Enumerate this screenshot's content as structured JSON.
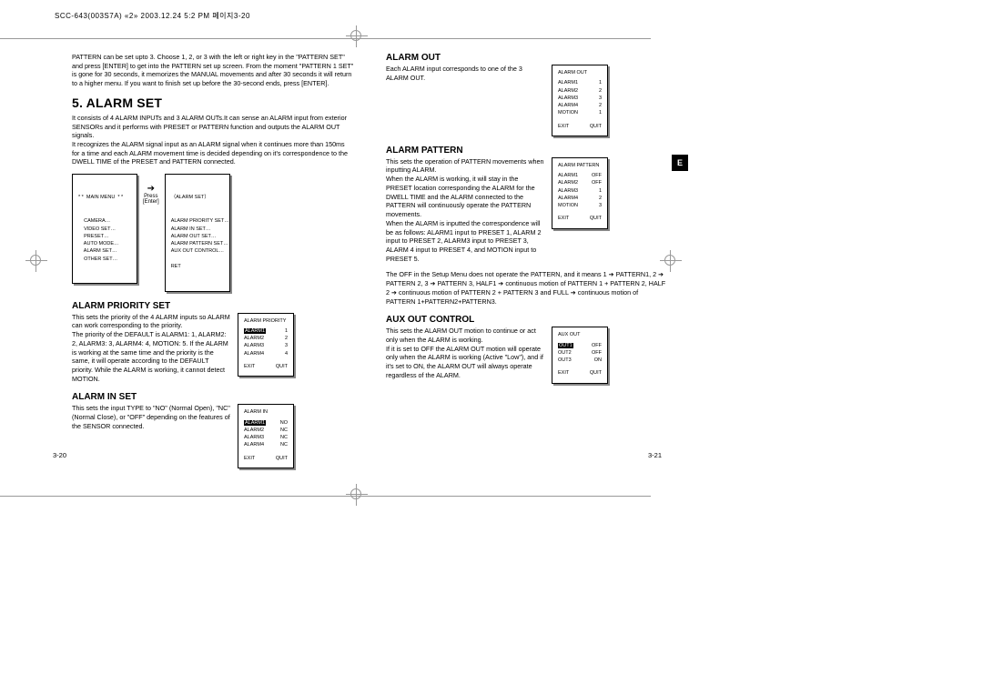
{
  "header": "SCC-643(003S7A) «2»  2003.12.24 5:2 PM 페이지3-20",
  "lang_tab": "E",
  "page_left_num": "3-20",
  "page_right_num": "3-21",
  "left": {
    "intro": "PATTERN can be set upto 3.  Choose 1, 2, or 3 with the left or right key in the \"PATTERN SET\" and press [ENTER] to get into the PATTERN set up screen. From the moment \"PATTERN 1 SET\" is gone for 30 seconds, it memorizes the MANUAL movements and after 30 seconds it will return to a higher menu. If you want to finish set up before the 30-second ends, press [ENTER].",
    "h1": "5. ALARM SET",
    "p1": "It consists of 4 ALARM INPUTs and 3 ALARM OUTs.It can sense an ALARM input from exterior SENSORs and it performs with PRESET or PATTERN function and outputs the ALARM OUT signals.\nIt recognizes the ALARM signal input as an ALARM signal when it continues more than 150ms for a time and each ALARM movement time is decided depending on it's correspondence to the DWELL TIME of the PRESET and PATTERN connected.",
    "main_menu": {
      "title": "* *  MAIN MENU  * *",
      "items": "    CAMERA…\n    VIDEO SET…\n    PRESET…\n    AUTO MODE…\n    ALARM SET…\n    OTHER SET…"
    },
    "press": {
      "arrow": "➔",
      "l1": "Press",
      "l2": "[Enter]"
    },
    "alarm_set_menu": {
      "title": "（ALARM SET）",
      "items": "ALARM PRIORITY SET…\nALARM IN SET…\nALARM OUT SET…\nALARM PATTERN SET…\nAUX OUT CONTROL…\n\nRET"
    },
    "h2": "ALARM PRIORITY SET",
    "p2": "This sets the priority of the 4 ALARM inputs so ALARM can work corresponding to the priority.\nThe priority of the DEFAULT is ALARM1: 1, ALARM2: 2, ALARM3: 3, ALARM4: 4, MOTION: 5. If the ALARM is working at the same time and the priority is the same, it will operate according to the DEFAULT priority.  While the ALARM is working, it cannot detect MOTION.",
    "priority_menu": {
      "title": "ALARM PRIORITY",
      "rows": [
        [
          "ALARM1",
          "1"
        ],
        [
          "ALARM2",
          "2"
        ],
        [
          "ALARM3",
          "3"
        ],
        [
          "ALARM4",
          "4"
        ]
      ],
      "footer": [
        "EXIT",
        "QUIT"
      ]
    },
    "h3": "ALARM IN SET",
    "p3": "This sets the input TYPE to \"NO\" (Normal Open), \"NC\" (Normal Close), or \"OFF\" depending on the features of the SENSOR connected.",
    "in_menu": {
      "title": "ALARM IN",
      "rows": [
        [
          "ALARM1",
          "NO"
        ],
        [
          "ALARM2",
          "NC"
        ],
        [
          "ALARM3",
          "NC"
        ],
        [
          "ALARM4",
          "NC"
        ]
      ],
      "footer": [
        "EXIT",
        "QUIT"
      ]
    }
  },
  "right": {
    "h1": "ALARM OUT",
    "p1": "Each ALARM input corresponds to one of the 3 ALARM OUT.",
    "out_menu": {
      "title": "ALARM OUT",
      "rows": [
        [
          "ALARM1",
          "1"
        ],
        [
          "ALARM2",
          "2"
        ],
        [
          "ALARM3",
          "3"
        ],
        [
          "ALARM4",
          "2"
        ],
        [
          "MOTION",
          "1"
        ]
      ],
      "footer": [
        "EXIT",
        "QUIT"
      ]
    },
    "h2": "ALARM PATTERN",
    "p2": "This sets the operation of PATTERN movements when inputting ALARM.\nWhen the ALARM is working, it will stay in the PRESET location corresponding the ALARM for the DWELL TIME and the ALARM connected to the PATTERN will continuously operate the PATTERN movements.\nWhen the ALARM is inputted the correspondence will be as follows: ALARM1 input to PRESET 1, ALARM 2 input to PRESET 2, ALARM3 input to PRESET 3, ALARM 4 input to PRESET 4, and MOTION input to PRESET 5.",
    "pattern_menu": {
      "title": "ALARM PATTERN",
      "rows": [
        [
          "ALARM1",
          "OFF"
        ],
        [
          "ALARM2",
          "OFF"
        ],
        [
          "ALARM3",
          "1"
        ],
        [
          "ALARM4",
          "2"
        ],
        [
          "MOTION",
          "3"
        ]
      ],
      "footer": [
        "EXIT",
        "QUIT"
      ]
    },
    "p3": "The OFF in the Setup Menu does not operate the PATTERN, and it means 1 ➔ PATTERN1, 2 ➔ PATTERN 2, 3 ➔ PATTERN 3, HALF1 ➔ continuous motion of PATTERN 1 + PATTERN 2, HALF 2 ➔ continuous motion of PATTERN 2 + PATTERN 3 and FULL ➔ continuous motion of PATTERN 1+PATTERN2+PATTERN3.",
    "h3": "AUX OUT CONTROL",
    "p4": "This sets the ALARM OUT motion to continue or act only when the ALARM is working.\nIf it is set to OFF the ALARM OUT motion will operate only when the ALARM is working (Active \"Low\"), and if it's set to ON, the ALARM OUT will always operate regardless of the ALARM.",
    "aux_menu": {
      "title": "AUX OUT",
      "rows": [
        [
          "OUT1",
          "OFF"
        ],
        [
          "OUT2",
          "OFF"
        ],
        [
          "OUT3",
          "ON"
        ]
      ],
      "footer": [
        "EXIT",
        "QUIT"
      ]
    }
  }
}
